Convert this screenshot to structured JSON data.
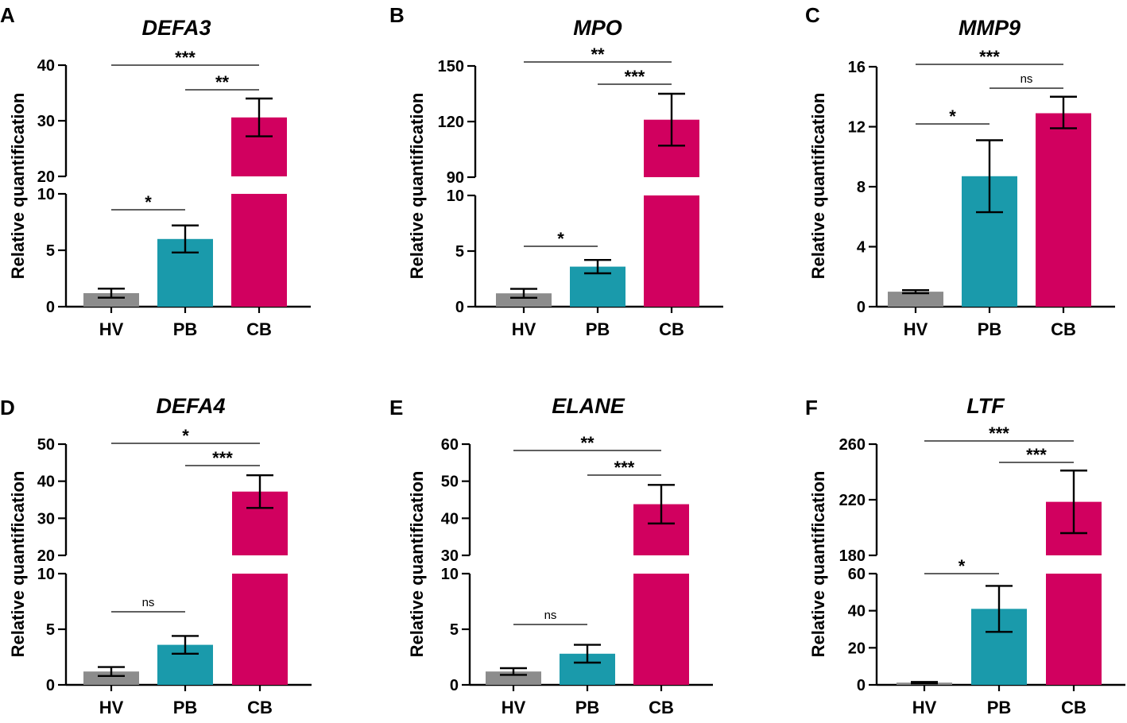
{
  "figure": {
    "ylabel": "Relative quantification",
    "colors": {
      "HV": "#8c8c8c",
      "PB": "#1a9aab",
      "CB": "#d1005f",
      "axis": "#000000"
    }
  },
  "chart_data": [
    {
      "panel_label": "A",
      "type": "bar",
      "title": "DEFA3",
      "ylabel": "Relative quantification",
      "categories": [
        "HV",
        "PB",
        "CB"
      ],
      "values": [
        1.2,
        6.0,
        30.6
      ],
      "error": [
        [
          0.8,
          1.6
        ],
        [
          4.8,
          7.2
        ],
        [
          27.2,
          34.0
        ]
      ],
      "y_break": {
        "lower": [
          0,
          10
        ],
        "upper": [
          20,
          40
        ]
      },
      "lower_ticks": [
        "0",
        "5",
        "10"
      ],
      "upper_ticks": [
        "20",
        "30",
        "40"
      ],
      "comparisons": [
        {
          "from": "HV",
          "to": "CB",
          "label": "***"
        },
        {
          "from": "PB",
          "to": "CB",
          "label": "**"
        },
        {
          "from": "HV",
          "to": "PB",
          "label": "*"
        }
      ]
    },
    {
      "panel_label": "B",
      "type": "bar",
      "title": "MPO",
      "ylabel": "Relative quantification",
      "categories": [
        "HV",
        "PB",
        "CB"
      ],
      "values": [
        1.2,
        3.6,
        121
      ],
      "error": [
        [
          0.8,
          1.6
        ],
        [
          3.0,
          4.2
        ],
        [
          107,
          135
        ]
      ],
      "y_break": {
        "lower": [
          0,
          10
        ],
        "upper": [
          90,
          150
        ]
      },
      "lower_ticks": [
        "0",
        "5",
        "10"
      ],
      "upper_ticks": [
        "90",
        "120",
        "150"
      ],
      "comparisons": [
        {
          "from": "HV",
          "to": "CB",
          "label": "**"
        },
        {
          "from": "PB",
          "to": "CB",
          "label": "***"
        },
        {
          "from": "HV",
          "to": "PB",
          "label": "*"
        }
      ]
    },
    {
      "panel_label": "C",
      "type": "bar",
      "title": "MMP9",
      "ylabel": "Relative quantification",
      "categories": [
        "HV",
        "PB",
        "CB"
      ],
      "values": [
        1.0,
        8.7,
        12.9
      ],
      "error": [
        [
          0.9,
          1.1
        ],
        [
          6.3,
          11.1
        ],
        [
          11.9,
          14.0
        ]
      ],
      "ylim": [
        0,
        16
      ],
      "ticks": [
        "0",
        "4",
        "8",
        "12",
        "16"
      ],
      "comparisons": [
        {
          "from": "HV",
          "to": "CB",
          "label": "***"
        },
        {
          "from": "PB",
          "to": "CB",
          "label": "ns"
        },
        {
          "from": "HV",
          "to": "PB",
          "label": "*"
        }
      ]
    },
    {
      "panel_label": "D",
      "type": "bar",
      "title": "DEFA4",
      "ylabel": "Relative quantification",
      "categories": [
        "HV",
        "PB",
        "CB"
      ],
      "values": [
        1.2,
        3.6,
        37.2
      ],
      "error": [
        [
          0.8,
          1.6
        ],
        [
          2.8,
          4.4
        ],
        [
          32.8,
          41.6
        ]
      ],
      "y_break": {
        "lower": [
          0,
          10
        ],
        "upper": [
          20,
          50
        ]
      },
      "lower_ticks": [
        "0",
        "5",
        "10"
      ],
      "upper_ticks": [
        "20",
        "30",
        "40",
        "50"
      ],
      "comparisons": [
        {
          "from": "HV",
          "to": "CB",
          "label": "*"
        },
        {
          "from": "PB",
          "to": "CB",
          "label": "***"
        },
        {
          "from": "HV",
          "to": "PB",
          "label": "ns"
        }
      ]
    },
    {
      "panel_label": "E",
      "type": "bar",
      "title": "ELANE",
      "ylabel": "Relative quantification",
      "categories": [
        "HV",
        "PB",
        "CB"
      ],
      "values": [
        1.2,
        2.8,
        43.8
      ],
      "error": [
        [
          0.9,
          1.5
        ],
        [
          2.0,
          3.6
        ],
        [
          38.6,
          49.0
        ]
      ],
      "y_break": {
        "lower": [
          0,
          10
        ],
        "upper": [
          30,
          60
        ]
      },
      "lower_ticks": [
        "0",
        "5",
        "10"
      ],
      "upper_ticks": [
        "30",
        "40",
        "50",
        "60"
      ],
      "comparisons": [
        {
          "from": "HV",
          "to": "CB",
          "label": "**"
        },
        {
          "from": "PB",
          "to": "CB",
          "label": "***"
        },
        {
          "from": "HV",
          "to": "PB",
          "label": "ns"
        }
      ]
    },
    {
      "panel_label": "F",
      "type": "bar",
      "title": "LTF",
      "ylabel": "Relative quantification",
      "categories": [
        "HV",
        "PB",
        "CB"
      ],
      "values": [
        1.2,
        41.0,
        218.5
      ],
      "error": [
        [
          0.8,
          1.6
        ],
        [
          28.6,
          53.4
        ],
        [
          196,
          241
        ]
      ],
      "y_break": {
        "lower": [
          0,
          60
        ],
        "upper": [
          180,
          260
        ]
      },
      "lower_ticks": [
        "0",
        "20",
        "40",
        "60"
      ],
      "upper_ticks": [
        "180",
        "220",
        "260"
      ],
      "comparisons": [
        {
          "from": "HV",
          "to": "CB",
          "label": "***"
        },
        {
          "from": "PB",
          "to": "CB",
          "label": "***"
        },
        {
          "from": "HV",
          "to": "PB",
          "label": "*"
        }
      ]
    }
  ]
}
